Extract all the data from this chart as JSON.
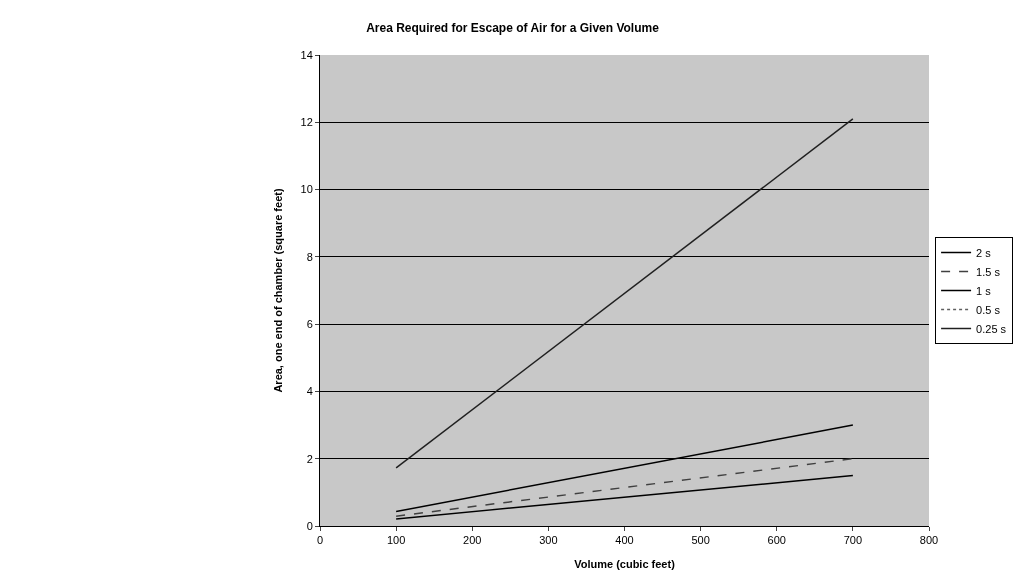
{
  "chart_data": {
    "type": "line",
    "title": "Area Required for Escape of Air for a Given Volume",
    "xlabel": "Volume (cubic feet)",
    "ylabel": "Area, one end of chamber (square feet)",
    "x": [
      100,
      700
    ],
    "series": [
      {
        "name": "2 s",
        "color": "#000000",
        "values": [
          0.21,
          1.5
        ],
        "line_style": "solid"
      },
      {
        "name": "1.5 s",
        "color": "#404040",
        "values": [
          0.29,
          2.0
        ],
        "line_style": "dashed"
      },
      {
        "name": "1 s",
        "color": "#000000",
        "values": [
          0.43,
          3.0
        ],
        "line_style": "solid"
      },
      {
        "name": "0.5 s",
        "color": "#606060",
        "values": [
          null,
          null
        ],
        "line_style": "dotted"
      },
      {
        "name": "0.25 s",
        "color": "#202020",
        "values": [
          1.73,
          12.1
        ],
        "line_style": "solid"
      }
    ],
    "xlim": [
      0,
      800
    ],
    "xticks": [
      0,
      100,
      200,
      300,
      400,
      500,
      600,
      700,
      800
    ],
    "ylim": [
      0,
      14
    ],
    "yticks": [
      0,
      2,
      4,
      6,
      8,
      10,
      12,
      14
    ],
    "grid": "y",
    "legend": "right",
    "marker": "none"
  }
}
